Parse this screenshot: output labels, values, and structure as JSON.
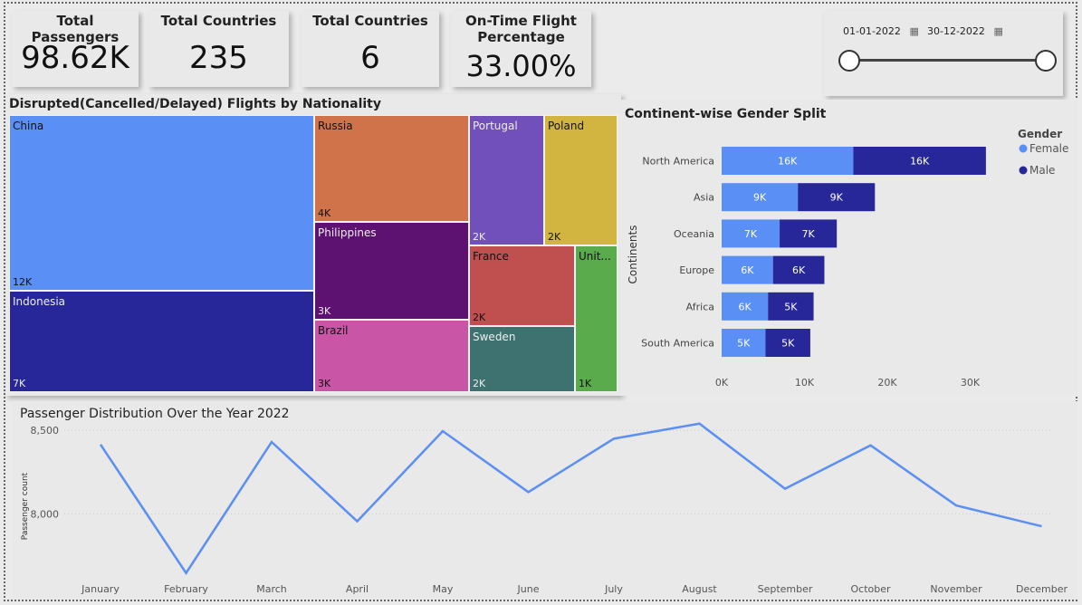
{
  "kpis": [
    {
      "title": "Total Passengers",
      "value": "98.62K"
    },
    {
      "title": "Total Countries",
      "value": "235"
    },
    {
      "title": "Total Countries",
      "value": "6"
    },
    {
      "title": "On-Time Flight\nPercentage",
      "title_line1": "On-Time Flight",
      "title_line2": "Percentage",
      "value": "33.00%"
    }
  ],
  "date_slicer": {
    "start": "01-01-2022",
    "end": "30-12-2022"
  },
  "colors": {
    "female": "#5a8ff5",
    "male": "#27279a",
    "line": "#5b8ff4"
  },
  "chart_data": [
    {
      "type": "treemap",
      "title": "Disrupted(Cancelled/Delayed) Flights by Nationality",
      "items": [
        {
          "name": "China",
          "label": "12K",
          "color": "#5a8ff5"
        },
        {
          "name": "Indonesia",
          "label": "7K",
          "color": "#27279a"
        },
        {
          "name": "Russia",
          "label": "4K",
          "color": "#d0724a"
        },
        {
          "name": "Philippines",
          "label": "3K",
          "color": "#5d1170"
        },
        {
          "name": "Brazil",
          "label": "3K",
          "color": "#c955a6"
        },
        {
          "name": "Portugal",
          "label": "2K",
          "color": "#7150bb"
        },
        {
          "name": "Poland",
          "label": "2K",
          "color": "#d2b540"
        },
        {
          "name": "France",
          "label": "2K",
          "color": "#c05050"
        },
        {
          "name": "Sweden",
          "label": "2K",
          "color": "#3e7270"
        },
        {
          "name": "Unit...",
          "label": "1K",
          "color": "#5aab4c"
        }
      ]
    },
    {
      "type": "bar",
      "orientation": "horizontal-stacked",
      "title": "Continent-wise Gender Split",
      "ylabel": "Continents",
      "legend_title": "Gender",
      "categories": [
        "North America",
        "Asia",
        "Oceania",
        "Europe",
        "Africa",
        "South America"
      ],
      "series": [
        {
          "name": "Female",
          "values": [
            15.9,
            9.2,
            7.0,
            6.2,
            5.6,
            5.3
          ],
          "labels": [
            "16K",
            "9K",
            "7K",
            "6K",
            "6K",
            "5K"
          ]
        },
        {
          "name": "Male",
          "values": [
            16.0,
            9.3,
            6.9,
            6.2,
            5.5,
            5.4
          ],
          "labels": [
            "16K",
            "9K",
            "7K",
            "6K",
            "5K",
            "5K"
          ]
        }
      ],
      "xticks": [
        "0K",
        "10K",
        "20K",
        "30K"
      ],
      "xlim": [
        0,
        33
      ]
    },
    {
      "type": "line",
      "title": "Passenger Distribution Over the Year 2022",
      "ylabel": "Passenger count",
      "categories": [
        "January",
        "February",
        "March",
        "April",
        "May",
        "June",
        "July",
        "August",
        "September",
        "October",
        "November",
        "December"
      ],
      "values": [
        8415,
        7645,
        8430,
        7955,
        8495,
        8130,
        8450,
        8540,
        8150,
        8410,
        8050,
        7925
      ],
      "yticks": [
        "8,500",
        "8,000"
      ],
      "ytick_values": [
        8500,
        8000
      ],
      "ylim": [
        7600,
        8620
      ]
    }
  ]
}
